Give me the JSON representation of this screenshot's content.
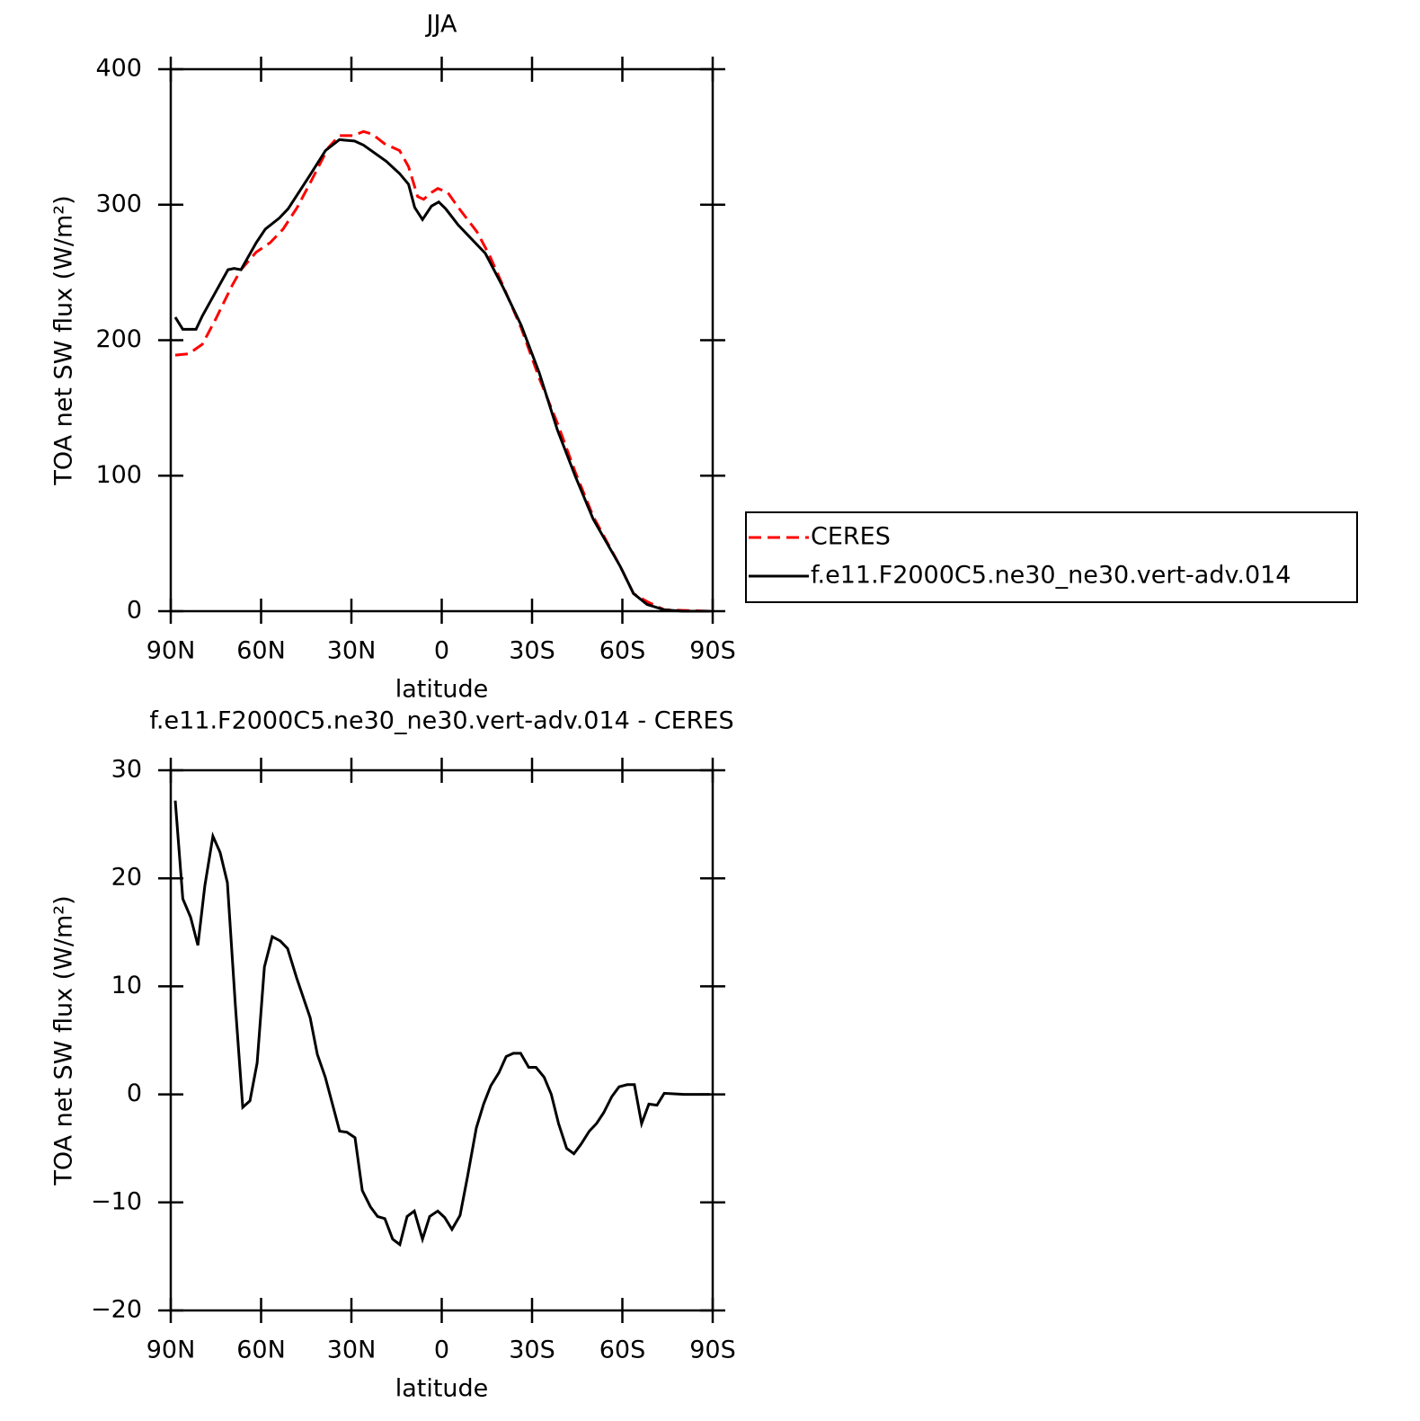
{
  "chart_data": [
    {
      "type": "line",
      "title": "JJA",
      "x_label": "latitude",
      "y_label": "TOA net SW flux (W/m²)",
      "xlim": [
        90,
        -90
      ],
      "ylim": [
        0,
        400
      ],
      "xticks": [
        {
          "value": 90,
          "label": "90N"
        },
        {
          "value": 60,
          "label": "60N"
        },
        {
          "value": 30,
          "label": "30N"
        },
        0,
        {
          "value": -30,
          "label": "30S"
        },
        {
          "value": -60,
          "label": "60S"
        },
        {
          "value": -90,
          "label": "90S"
        }
      ],
      "yticks": [
        0,
        100,
        200,
        300,
        400
      ],
      "legend": "right",
      "series": [
        {
          "name": "CERES",
          "color": "#ff0000",
          "line_style": "dashed",
          "x": [
            88.5,
            84,
            79.5,
            75,
            69.7,
            66.7,
            61.6,
            57,
            52.7,
            48,
            43.7,
            37.7,
            34,
            29.4,
            26,
            23,
            19,
            14,
            11,
            8,
            6,
            3.4,
            1.3,
            -2,
            -5.5,
            -11.7,
            -16,
            -20.4,
            -26.4,
            -32.4,
            -38.4,
            -44.3,
            -50.3,
            -59.3,
            -63.7,
            -68.2,
            -74,
            -89
          ],
          "values": [
            189,
            190,
            197,
            216,
            240,
            252,
            265,
            272,
            282,
            298,
            316,
            342,
            351,
            351,
            354,
            352,
            345,
            340,
            328,
            306,
            304,
            309,
            312,
            309,
            298,
            280,
            262,
            240,
            209,
            172,
            139,
            103,
            70,
            33,
            13,
            7,
            1,
            0
          ]
        },
        {
          "name": "f.e11.F2000C5.ne30_ne30.vert-adv.014",
          "color": "#000000",
          "line_style": "solid",
          "x": [
            88.5,
            86,
            81.6,
            79.5,
            76,
            71,
            69,
            66.7,
            61.6,
            58.6,
            54,
            51,
            43.7,
            38.6,
            34,
            29,
            26,
            18.4,
            14,
            11,
            9,
            6.4,
            3.4,
            1,
            -1.3,
            -5.5,
            -14.5,
            -20.4,
            -26.4,
            -32.4,
            -38.4,
            -44.3,
            -50.3,
            -59.3,
            -63.7,
            -68.2,
            -74,
            -80,
            -89
          ],
          "values": [
            217,
            208,
            208,
            218,
            232,
            252,
            253,
            252,
            272,
            282,
            290,
            297,
            322,
            340,
            348,
            347,
            344,
            332,
            323,
            315,
            298,
            289,
            299,
            302,
            297,
            285,
            264,
            239,
            211,
            176,
            134,
            100,
            68,
            33,
            13,
            5,
            1,
            0,
            0
          ]
        }
      ]
    },
    {
      "type": "line",
      "title": "f.e11.F2000C5.ne30_ne30.vert-adv.014 - CERES",
      "x_label": "latitude",
      "y_label": "TOA net SW flux (W/m²)",
      "xlim": [
        90,
        -90
      ],
      "ylim": [
        -20,
        30
      ],
      "xticks": [
        {
          "value": 90,
          "label": "90N"
        },
        {
          "value": 60,
          "label": "60N"
        },
        {
          "value": 30,
          "label": "30N"
        },
        0,
        {
          "value": -30,
          "label": "30S"
        },
        {
          "value": -60,
          "label": "60S"
        },
        {
          "value": -90,
          "label": "90S"
        }
      ],
      "yticks": [
        {
          "value": -20,
          "label": "−20"
        },
        {
          "value": -10,
          "label": "−10"
        },
        0,
        10,
        20,
        30
      ],
      "color": "#000000",
      "x": [
        88.5,
        86,
        83.4,
        81,
        78.7,
        76,
        73.6,
        71.2,
        68.5,
        66.1,
        63.7,
        61.3,
        58.9,
        56.3,
        53.6,
        51.2,
        48.2,
        43.7,
        41.3,
        38.7,
        36.3,
        33.9,
        31.5,
        28.8,
        26.4,
        23.7,
        21.3,
        18.9,
        16.3,
        13.9,
        11.5,
        9.1,
        6.4,
        4,
        1.3,
        -1,
        -3.4,
        -6.1,
        -8.5,
        -11.5,
        -13.9,
        -16.3,
        -19,
        -21.4,
        -23.8,
        -26.2,
        -28.9,
        -31.3,
        -34,
        -36.4,
        -38.8,
        -41.5,
        -43.9,
        -46.3,
        -49,
        -51.4,
        -53.8,
        -56.5,
        -58.9,
        -61.6,
        -64,
        -66.4,
        -68.8,
        -71.5,
        -73.9,
        -80.5,
        -83.5,
        -89
      ],
      "values": [
        27.2,
        18.1,
        16.4,
        13.8,
        19.3,
        23.9,
        22.4,
        19.6,
        8.1,
        -1.2,
        -0.6,
        2.9,
        11.8,
        14.6,
        14.2,
        13.5,
        10.8,
        7.1,
        3.7,
        1.6,
        -0.9,
        -3.4,
        -3.5,
        -4.0,
        -8.9,
        -10.4,
        -11.3,
        -11.5,
        -13.4,
        -13.9,
        -11.3,
        -10.8,
        -13.4,
        -11.3,
        -10.8,
        -11.4,
        -12.5,
        -11.2,
        -7.7,
        -3.1,
        -0.9,
        0.8,
        2.0,
        3.5,
        3.8,
        3.8,
        2.5,
        2.5,
        1.6,
        0,
        -2.7,
        -5.0,
        -5.5,
        -4.6,
        -3.4,
        -2.7,
        -1.7,
        -0.2,
        0.7,
        0.9,
        0.9,
        -2.7,
        -0.9,
        -1.0,
        0.1,
        0,
        0,
        0
      ]
    }
  ]
}
